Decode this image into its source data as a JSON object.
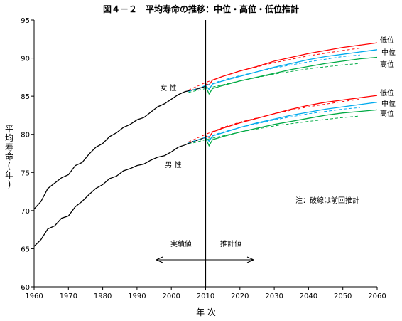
{
  "chart_data": {
    "type": "line",
    "title": "図４－２　平均寿命の推移：中位・高位・低位推計",
    "xlabel": "年 次",
    "ylabel": "平均寿命(年)",
    "xlim": [
      1960,
      2060
    ],
    "ylim": [
      60,
      95
    ],
    "xticks": [
      1960,
      1970,
      1980,
      1990,
      2000,
      2010,
      2020,
      2030,
      2040,
      2050,
      2060
    ],
    "yticks": [
      60,
      65,
      70,
      75,
      80,
      85,
      90,
      95
    ],
    "grid": false,
    "vertical_reference_line": 2010,
    "annotations": {
      "female": "女 性",
      "male": "男 性",
      "note": "注：破線は前回推計",
      "actual": "実績値",
      "projected": "推計値",
      "series_labels": {
        "female": [
          "低位",
          "中位",
          "高位"
        ],
        "male": [
          "低位",
          "中位",
          "高位"
        ]
      }
    },
    "colors": {
      "actual": "#000000",
      "low": "#ff0000",
      "mid": "#00aaee",
      "high": "#00aa44"
    },
    "series": [
      {
        "key": "female_actual",
        "color": "#000000",
        "style": "solid",
        "points": [
          [
            1960,
            70.2
          ],
          [
            1962,
            71.2
          ],
          [
            1964,
            72.9
          ],
          [
            1966,
            73.6
          ],
          [
            1968,
            74.3
          ],
          [
            1970,
            74.7
          ],
          [
            1972,
            75.9
          ],
          [
            1974,
            76.3
          ],
          [
            1976,
            77.4
          ],
          [
            1978,
            78.3
          ],
          [
            1980,
            78.8
          ],
          [
            1982,
            79.7
          ],
          [
            1984,
            80.2
          ],
          [
            1986,
            80.9
          ],
          [
            1988,
            81.3
          ],
          [
            1990,
            81.9
          ],
          [
            1992,
            82.2
          ],
          [
            1994,
            82.9
          ],
          [
            1996,
            83.6
          ],
          [
            1998,
            84.0
          ],
          [
            2000,
            84.6
          ],
          [
            2002,
            85.2
          ],
          [
            2004,
            85.6
          ],
          [
            2006,
            85.8
          ],
          [
            2008,
            86.0
          ],
          [
            2010,
            86.3
          ]
        ]
      },
      {
        "key": "female_low",
        "color": "#ff0000",
        "style": "solid",
        "points": [
          [
            2010,
            86.6
          ],
          [
            2011,
            86.5
          ],
          [
            2012,
            87.1
          ],
          [
            2015,
            87.6
          ],
          [
            2020,
            88.3
          ],
          [
            2025,
            88.9
          ],
          [
            2030,
            89.6
          ],
          [
            2035,
            90.1
          ],
          [
            2040,
            90.6
          ],
          [
            2045,
            91.0
          ],
          [
            2050,
            91.4
          ],
          [
            2055,
            91.7
          ],
          [
            2060,
            92.0
          ]
        ]
      },
      {
        "key": "female_mid",
        "color": "#00aaee",
        "style": "solid",
        "points": [
          [
            2010,
            86.4
          ],
          [
            2011,
            85.9
          ],
          [
            2012,
            86.6
          ],
          [
            2015,
            87.0
          ],
          [
            2020,
            87.6
          ],
          [
            2025,
            88.2
          ],
          [
            2030,
            88.8
          ],
          [
            2035,
            89.3
          ],
          [
            2040,
            89.8
          ],
          [
            2045,
            90.2
          ],
          [
            2050,
            90.5
          ],
          [
            2055,
            90.8
          ],
          [
            2060,
            91.1
          ]
        ]
      },
      {
        "key": "female_high",
        "color": "#00aa44",
        "style": "solid",
        "points": [
          [
            2010,
            86.3
          ],
          [
            2011,
            85.3
          ],
          [
            2012,
            86.0
          ],
          [
            2015,
            86.4
          ],
          [
            2020,
            87.0
          ],
          [
            2025,
            87.5
          ],
          [
            2030,
            88.0
          ],
          [
            2035,
            88.5
          ],
          [
            2040,
            88.9
          ],
          [
            2045,
            89.3
          ],
          [
            2050,
            89.6
          ],
          [
            2055,
            89.9
          ],
          [
            2060,
            90.1
          ]
        ]
      },
      {
        "key": "female_low_prev",
        "color": "#ff0000",
        "style": "dashed",
        "points": [
          [
            2005,
            85.8
          ],
          [
            2010,
            86.8
          ],
          [
            2015,
            87.6
          ],
          [
            2020,
            88.3
          ],
          [
            2030,
            89.4
          ],
          [
            2040,
            90.3
          ],
          [
            2050,
            91.0
          ],
          [
            2055,
            91.3
          ]
        ]
      },
      {
        "key": "female_mid_prev",
        "color": "#00aaee",
        "style": "dashed",
        "points": [
          [
            2005,
            85.6
          ],
          [
            2010,
            86.4
          ],
          [
            2015,
            87.1
          ],
          [
            2020,
            87.7
          ],
          [
            2030,
            88.7
          ],
          [
            2040,
            89.5
          ],
          [
            2050,
            90.2
          ],
          [
            2055,
            90.4
          ]
        ]
      },
      {
        "key": "female_high_prev",
        "color": "#00aa44",
        "style": "dashed",
        "points": [
          [
            2005,
            85.5
          ],
          [
            2010,
            86.0
          ],
          [
            2015,
            86.5
          ],
          [
            2020,
            87.0
          ],
          [
            2030,
            87.9
          ],
          [
            2040,
            88.6
          ],
          [
            2050,
            89.1
          ],
          [
            2055,
            89.3
          ]
        ]
      },
      {
        "key": "male_actual",
        "color": "#000000",
        "style": "solid",
        "points": [
          [
            1960,
            65.3
          ],
          [
            1962,
            66.2
          ],
          [
            1964,
            67.6
          ],
          [
            1966,
            68.0
          ],
          [
            1968,
            69.0
          ],
          [
            1970,
            69.3
          ],
          [
            1972,
            70.5
          ],
          [
            1974,
            71.2
          ],
          [
            1976,
            72.1
          ],
          [
            1978,
            72.9
          ],
          [
            1980,
            73.4
          ],
          [
            1982,
            74.2
          ],
          [
            1984,
            74.5
          ],
          [
            1986,
            75.2
          ],
          [
            1988,
            75.5
          ],
          [
            1990,
            75.9
          ],
          [
            1992,
            76.1
          ],
          [
            1994,
            76.6
          ],
          [
            1996,
            77.0
          ],
          [
            1998,
            77.2
          ],
          [
            2000,
            77.7
          ],
          [
            2002,
            78.3
          ],
          [
            2004,
            78.6
          ],
          [
            2006,
            79.0
          ],
          [
            2008,
            79.3
          ],
          [
            2010,
            79.6
          ]
        ]
      },
      {
        "key": "male_low",
        "color": "#ff0000",
        "style": "solid",
        "points": [
          [
            2010,
            79.8
          ],
          [
            2011,
            79.6
          ],
          [
            2012,
            80.3
          ],
          [
            2015,
            80.8
          ],
          [
            2020,
            81.5
          ],
          [
            2025,
            82.1
          ],
          [
            2030,
            82.7
          ],
          [
            2035,
            83.3
          ],
          [
            2040,
            83.8
          ],
          [
            2045,
            84.2
          ],
          [
            2050,
            84.5
          ],
          [
            2055,
            84.8
          ],
          [
            2060,
            85.1
          ]
        ]
      },
      {
        "key": "male_mid",
        "color": "#00aaee",
        "style": "solid",
        "points": [
          [
            2010,
            79.6
          ],
          [
            2011,
            79.1
          ],
          [
            2012,
            79.8
          ],
          [
            2015,
            80.2
          ],
          [
            2020,
            80.9
          ],
          [
            2025,
            81.5
          ],
          [
            2030,
            82.0
          ],
          [
            2035,
            82.5
          ],
          [
            2040,
            82.9
          ],
          [
            2045,
            83.3
          ],
          [
            2050,
            83.6
          ],
          [
            2055,
            83.9
          ],
          [
            2060,
            84.2
          ]
        ]
      },
      {
        "key": "male_high",
        "color": "#00aa44",
        "style": "solid",
        "points": [
          [
            2010,
            79.5
          ],
          [
            2011,
            78.5
          ],
          [
            2012,
            79.3
          ],
          [
            2015,
            79.7
          ],
          [
            2020,
            80.3
          ],
          [
            2025,
            80.8
          ],
          [
            2030,
            81.3
          ],
          [
            2035,
            81.7
          ],
          [
            2040,
            82.1
          ],
          [
            2045,
            82.5
          ],
          [
            2050,
            82.8
          ],
          [
            2055,
            83.0
          ],
          [
            2060,
            83.2
          ]
        ]
      },
      {
        "key": "male_low_prev",
        "color": "#ff0000",
        "style": "dashed",
        "points": [
          [
            2005,
            79.0
          ],
          [
            2010,
            80.0
          ],
          [
            2015,
            80.9
          ],
          [
            2020,
            81.6
          ],
          [
            2030,
            82.7
          ],
          [
            2040,
            83.6
          ],
          [
            2050,
            84.3
          ],
          [
            2055,
            84.6
          ]
        ]
      },
      {
        "key": "male_mid_prev",
        "color": "#00aaee",
        "style": "dashed",
        "points": [
          [
            2005,
            78.9
          ],
          [
            2010,
            79.6
          ],
          [
            2015,
            80.3
          ],
          [
            2020,
            80.9
          ],
          [
            2030,
            81.9
          ],
          [
            2040,
            82.7
          ],
          [
            2050,
            83.3
          ],
          [
            2055,
            83.5
          ]
        ]
      },
      {
        "key": "male_high_prev",
        "color": "#00aa44",
        "style": "dashed",
        "points": [
          [
            2005,
            78.7
          ],
          [
            2010,
            79.3
          ],
          [
            2015,
            79.8
          ],
          [
            2020,
            80.3
          ],
          [
            2030,
            81.1
          ],
          [
            2040,
            81.7
          ],
          [
            2050,
            82.2
          ],
          [
            2055,
            82.4
          ]
        ]
      }
    ]
  }
}
